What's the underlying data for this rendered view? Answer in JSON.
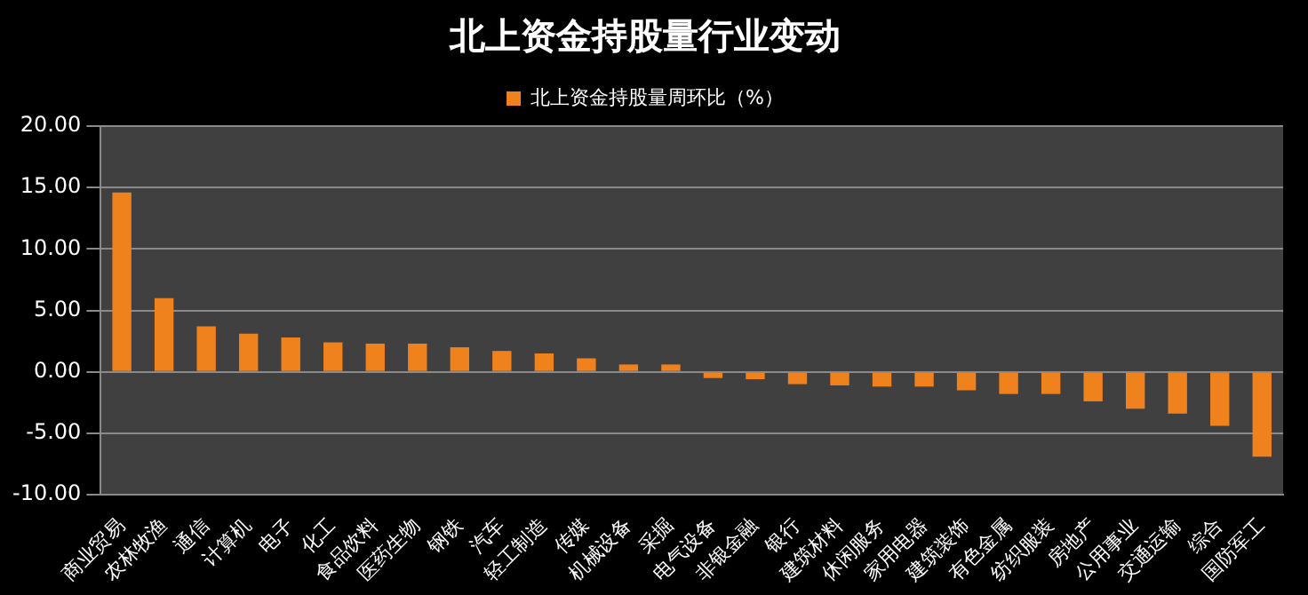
{
  "chart_data": {
    "type": "bar",
    "title": "北上资金持股量行业变动",
    "categories": [
      "商业贸易",
      "农林牧渔",
      "通信",
      "计算机",
      "电子",
      "化工",
      "食品饮料",
      "医药生物",
      "钢铁",
      "汽车",
      "轻工制造",
      "传媒",
      "机械设备",
      "采掘",
      "电气设备",
      "非银金融",
      "银行",
      "建筑材料",
      "休闲服务",
      "家用电器",
      "建筑装饰",
      "有色金属",
      "纺织服装",
      "房地产",
      "公用事业",
      "交通运输",
      "综合",
      "国防军工"
    ],
    "series": [
      {
        "name": "北上资金持股量周环比（%）",
        "color": "#f0821e",
        "values": [
          14.6,
          6.0,
          3.7,
          3.1,
          2.8,
          2.4,
          2.3,
          2.3,
          2.0,
          1.7,
          1.5,
          1.1,
          0.6,
          0.6,
          -0.5,
          -0.6,
          -1.0,
          -1.1,
          -1.2,
          -1.2,
          -1.5,
          -1.8,
          -1.8,
          -2.4,
          -3.0,
          -3.4,
          -4.4,
          -6.9
        ]
      }
    ],
    "ylim": [
      -10,
      20
    ],
    "yticks": [
      {
        "value": -10,
        "label": "-10.00"
      },
      {
        "value": -5,
        "label": "-5.00"
      },
      {
        "value": 0,
        "label": "0.00"
      },
      {
        "value": 5,
        "label": "5.00"
      },
      {
        "value": 10,
        "label": "10.00"
      },
      {
        "value": 15,
        "label": "15.00"
      },
      {
        "value": 20,
        "label": "20.00"
      }
    ],
    "grid": "y",
    "legend": "top"
  }
}
